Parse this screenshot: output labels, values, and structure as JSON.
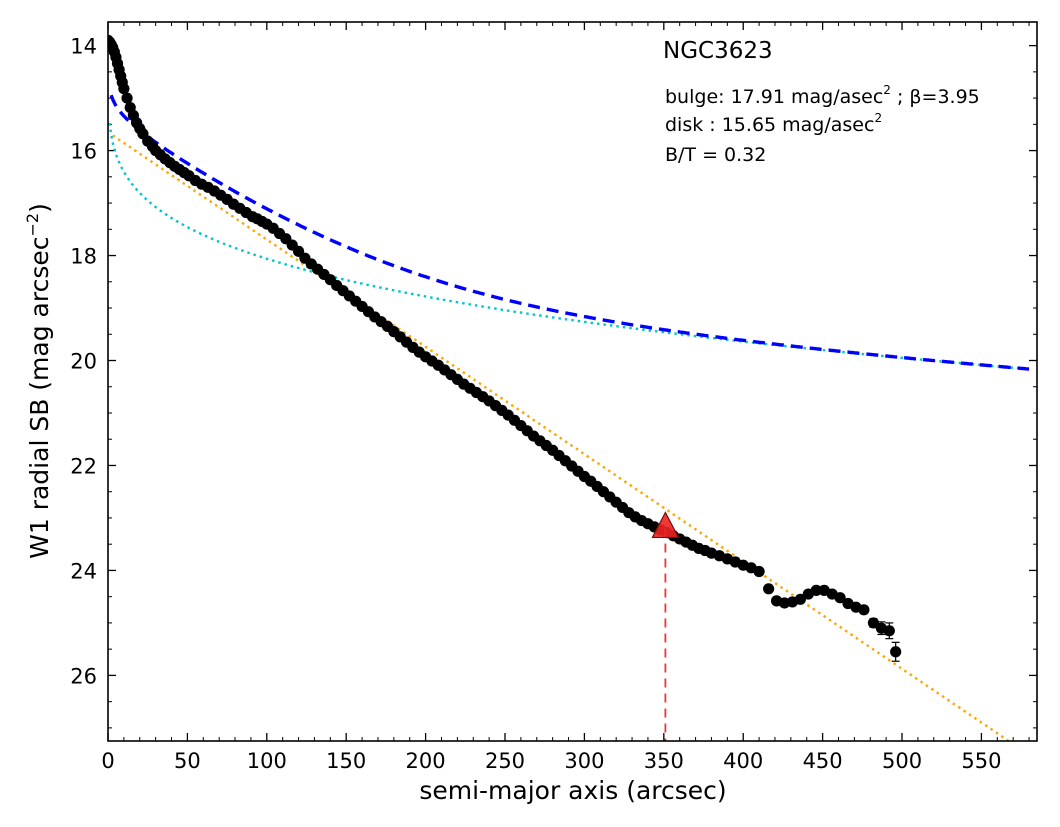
{
  "chart_data": {
    "type": "scatter",
    "title": "NGC3623",
    "xlabel": "semi-major axis (arcsec)",
    "ylabel": {
      "main": "W1 radial SB (mag arcsec",
      "exp": "−2",
      "close": ")"
    },
    "xlim": [
      0,
      585
    ],
    "ylim": [
      27.25,
      13.55
    ],
    "y_inverted": true,
    "grid": false,
    "x_ticks": [
      0,
      50,
      100,
      150,
      200,
      250,
      300,
      350,
      400,
      450,
      500,
      550
    ],
    "y_ticks": [
      14,
      16,
      18,
      20,
      22,
      24,
      26
    ],
    "annotations": {
      "bulge": {
        "prefix": "bulge: 17.91 mag/asec",
        "sup": "2",
        "suffix": " ; β=3.95"
      },
      "disk": {
        "prefix": "disk  : 15.65 mag/asec",
        "sup": "2"
      },
      "bt": "B/T = 0.32"
    },
    "model": {
      "mu_e_bulge": 17.91,
      "beta": 3.95,
      "mu_0_disk": 15.65,
      "bt": 0.32
    },
    "colors": {
      "data": "#000000",
      "total_model": "#0000ff",
      "bulge_component": "#00c5cd",
      "disk_component": "#ffa500",
      "marker": "#ee2222",
      "marker_line": "#ee3333"
    },
    "truncation_marker": {
      "x": 351,
      "y": 23.2
    },
    "observed": {
      "x": [
        0,
        1,
        2,
        3,
        4,
        5,
        6,
        7,
        8,
        9,
        10,
        12,
        14,
        16,
        18,
        20,
        22,
        25,
        28,
        30,
        33,
        36,
        39,
        42,
        45,
        48,
        51,
        55,
        59,
        63,
        67,
        71,
        75,
        79,
        83,
        87,
        91,
        94,
        97,
        100,
        104,
        108,
        112,
        116,
        120,
        124,
        128,
        132,
        136,
        140,
        144,
        148,
        152,
        156,
        160,
        164,
        168,
        172,
        176,
        180,
        184,
        188,
        192,
        196,
        200,
        204,
        208,
        212,
        216,
        220,
        224,
        228,
        232,
        236,
        240,
        244,
        248,
        252,
        256,
        260,
        264,
        268,
        272,
        276,
        280,
        284,
        288,
        292,
        296,
        300,
        304,
        308,
        312,
        316,
        320,
        324,
        328,
        332,
        336,
        340,
        344,
        348,
        352,
        356,
        360,
        364,
        368,
        372,
        376,
        380,
        385,
        390,
        395,
        400,
        405,
        410,
        416,
        421,
        426,
        431,
        436,
        441,
        446,
        451,
        456,
        461,
        466,
        471,
        476,
        482,
        487,
        492,
        496
      ],
      "y": [
        13.9,
        13.93,
        13.98,
        14.04,
        14.12,
        14.22,
        14.34,
        14.46,
        14.58,
        14.7,
        14.82,
        15.0,
        15.18,
        15.33,
        15.47,
        15.58,
        15.68,
        15.82,
        15.92,
        16.0,
        16.08,
        16.16,
        16.23,
        16.3,
        16.36,
        16.42,
        16.48,
        16.57,
        16.64,
        16.7,
        16.77,
        16.85,
        16.93,
        17.02,
        17.1,
        17.18,
        17.26,
        17.3,
        17.35,
        17.4,
        17.48,
        17.58,
        17.68,
        17.8,
        17.92,
        18.05,
        18.16,
        18.26,
        18.36,
        18.46,
        18.57,
        18.67,
        18.77,
        18.87,
        18.97,
        19.07,
        19.17,
        19.26,
        19.35,
        19.45,
        19.55,
        19.65,
        19.75,
        19.84,
        19.93,
        20.01,
        20.09,
        20.18,
        20.27,
        20.36,
        20.45,
        20.53,
        20.61,
        20.69,
        20.77,
        20.86,
        20.95,
        21.04,
        21.14,
        21.24,
        21.34,
        21.44,
        21.53,
        21.62,
        21.71,
        21.81,
        21.91,
        22.01,
        22.11,
        22.21,
        22.3,
        22.4,
        22.5,
        22.6,
        22.7,
        22.8,
        22.9,
        22.98,
        23.05,
        23.11,
        23.17,
        23.23,
        23.28,
        23.34,
        23.4,
        23.46,
        23.52,
        23.58,
        23.62,
        23.67,
        23.72,
        23.78,
        23.84,
        23.9,
        23.95,
        24.02,
        24.35,
        24.58,
        24.62,
        24.6,
        24.55,
        24.45,
        24.38,
        24.38,
        24.45,
        24.52,
        24.63,
        24.7,
        24.75,
        25.0,
        25.1,
        25.15,
        25.55
      ],
      "err": [
        0,
        0,
        0,
        0,
        0,
        0,
        0,
        0,
        0,
        0,
        0,
        0,
        0,
        0,
        0,
        0,
        0,
        0,
        0,
        0,
        0,
        0,
        0,
        0,
        0,
        0,
        0,
        0,
        0,
        0,
        0,
        0,
        0,
        0,
        0,
        0,
        0,
        0,
        0,
        0,
        0,
        0,
        0,
        0,
        0,
        0,
        0,
        0,
        0,
        0,
        0,
        0,
        0,
        0,
        0,
        0,
        0,
        0,
        0,
        0,
        0,
        0,
        0,
        0,
        0,
        0,
        0,
        0,
        0,
        0,
        0,
        0,
        0,
        0,
        0,
        0,
        0,
        0,
        0,
        0,
        0,
        0,
        0,
        0,
        0,
        0,
        0,
        0,
        0,
        0,
        0,
        0,
        0,
        0,
        0,
        0,
        0,
        0,
        0,
        0,
        0,
        0,
        0,
        0,
        0,
        0,
        0,
        0,
        0,
        0,
        0,
        0,
        0,
        0,
        0,
        0,
        0,
        0,
        0,
        0,
        0,
        0,
        0,
        0,
        0,
        0,
        0,
        0,
        0.05,
        0.08,
        0.12,
        0.15,
        0.18
      ]
    }
  }
}
